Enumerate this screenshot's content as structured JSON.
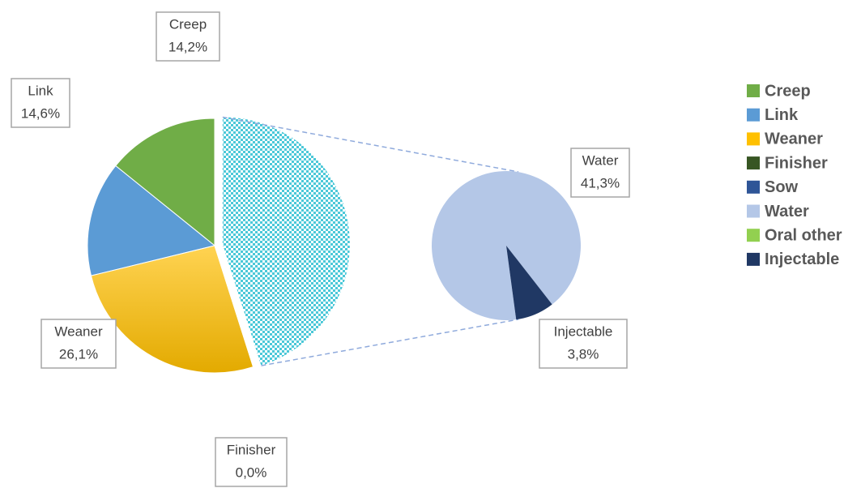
{
  "chart_data": {
    "type": "pie-of-pie",
    "series": [
      {
        "name": "Creep",
        "color": "#70ad47",
        "values": [
          14.2
        ],
        "value_labels": [
          "14,2%"
        ]
      },
      {
        "name": "Link",
        "color": "#5b9bd5",
        "values": [
          14.6
        ],
        "value_labels": [
          "14,6%"
        ]
      },
      {
        "name": "Weaner",
        "color": "#ffc000",
        "values": [
          26.1
        ],
        "value_labels": [
          "26,1%"
        ]
      },
      {
        "name": "Finisher",
        "color": "#375623",
        "values": [
          0.0
        ],
        "value_labels": [
          "0,0%"
        ]
      },
      {
        "name": "Sow",
        "color": "#2f5597",
        "values": [
          0
        ],
        "value_labels": [
          null
        ]
      },
      {
        "name": "Water",
        "color": "#b4c7e7",
        "values": [
          41.3
        ],
        "value_labels": [
          "41,3%"
        ]
      },
      {
        "name": "Oral other",
        "color": "#92d050",
        "values": [
          0
        ],
        "value_labels": [
          null
        ]
      },
      {
        "name": "Injectable",
        "color": "#203864",
        "values": [
          3.8
        ],
        "value_labels": [
          "3,8%"
        ]
      }
    ],
    "secondary_count": 4,
    "other_color": "#4bc8d8",
    "legend": "right"
  }
}
